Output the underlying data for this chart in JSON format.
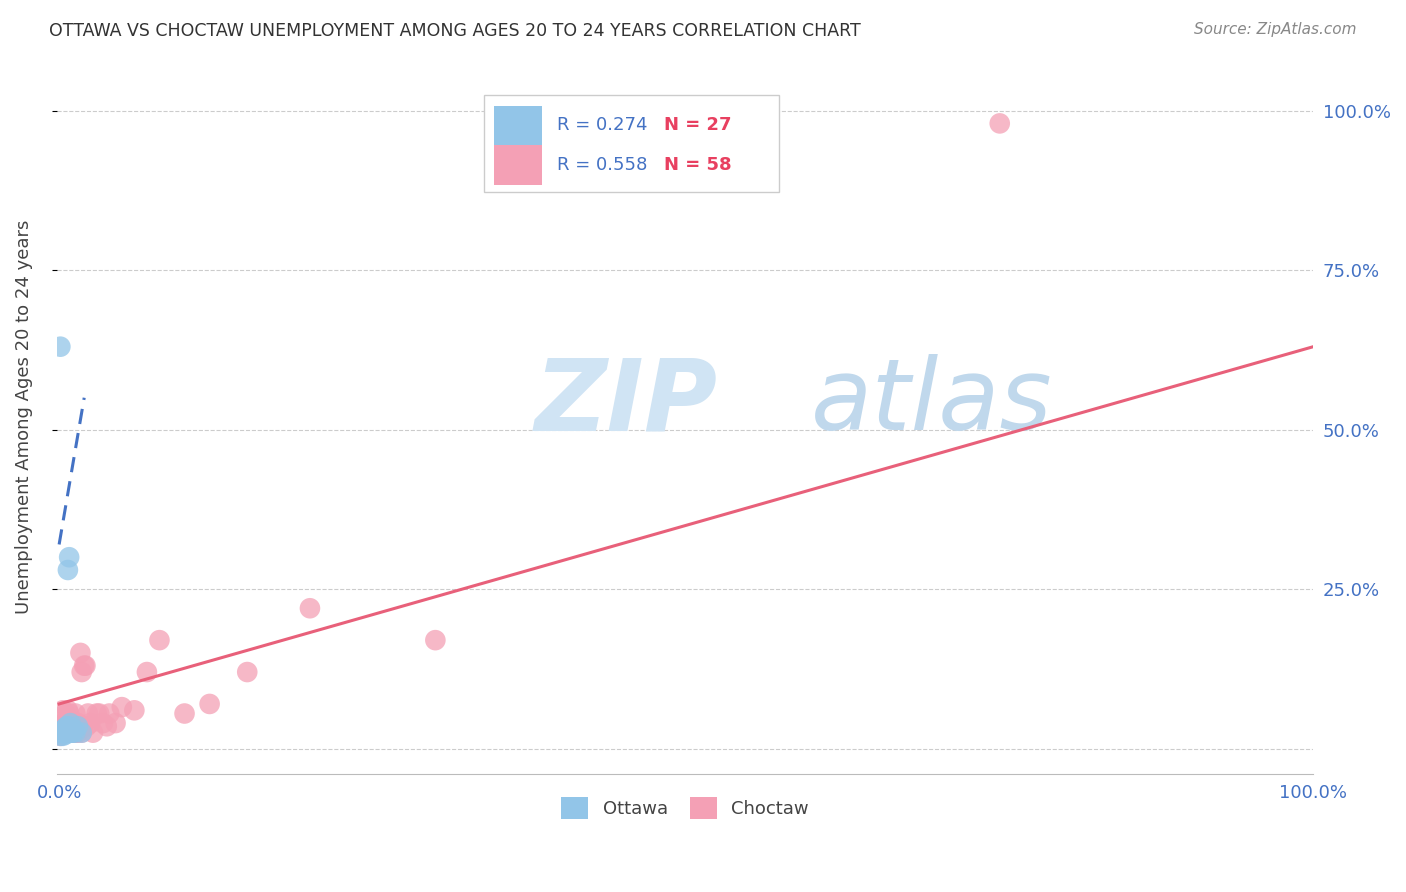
{
  "title": "OTTAWA VS CHOCTAW UNEMPLOYMENT AMONG AGES 20 TO 24 YEARS CORRELATION CHART",
  "source": "Source: ZipAtlas.com",
  "ylabel": "Unemployment Among Ages 20 to 24 years",
  "y_right_tick_labels": [
    "",
    "25.0%",
    "50.0%",
    "75.0%",
    "100.0%"
  ],
  "legend_ottawa_r": "R = 0.274",
  "legend_ottawa_n": "N = 27",
  "legend_choctaw_r": "R = 0.558",
  "legend_choctaw_n": "N = 58",
  "legend_bottom_ottawa": "Ottawa",
  "legend_bottom_choctaw": "Choctaw",
  "ottawa_color": "#92C5E8",
  "choctaw_color": "#F4A0B5",
  "ottawa_line_color": "#4472C4",
  "choctaw_line_color": "#E8607A",
  "legend_r_color": "#4472C4",
  "legend_n_color": "#E84060",
  "watermark_zip_color": "#D0E4F4",
  "watermark_atlas_color": "#C0D8EC",
  "background_color": "#FFFFFF",
  "grid_color": "#CCCCCC",
  "title_color": "#333333",
  "axis_tick_color": "#4472C4",
  "ottawa_x": [
    0.001,
    0.002,
    0.003,
    0.003,
    0.004,
    0.004,
    0.005,
    0.005,
    0.005,
    0.006,
    0.006,
    0.007,
    0.007,
    0.007,
    0.008,
    0.008,
    0.008,
    0.009,
    0.009,
    0.01,
    0.01,
    0.011,
    0.012,
    0.013,
    0.015,
    0.018,
    0.001
  ],
  "ottawa_y": [
    0.02,
    0.025,
    0.02,
    0.025,
    0.025,
    0.03,
    0.022,
    0.028,
    0.033,
    0.025,
    0.035,
    0.025,
    0.03,
    0.28,
    0.025,
    0.3,
    0.035,
    0.025,
    0.04,
    0.025,
    0.03,
    0.025,
    0.03,
    0.025,
    0.035,
    0.025,
    0.63
  ],
  "choctaw_x": [
    0.001,
    0.002,
    0.002,
    0.003,
    0.003,
    0.004,
    0.004,
    0.005,
    0.005,
    0.005,
    0.006,
    0.006,
    0.007,
    0.007,
    0.007,
    0.008,
    0.008,
    0.008,
    0.009,
    0.009,
    0.01,
    0.01,
    0.011,
    0.011,
    0.012,
    0.012,
    0.013,
    0.013,
    0.014,
    0.015,
    0.015,
    0.016,
    0.017,
    0.018,
    0.018,
    0.019,
    0.02,
    0.021,
    0.022,
    0.023,
    0.025,
    0.027,
    0.03,
    0.032,
    0.035,
    0.038,
    0.04,
    0.045,
    0.05,
    0.06,
    0.07,
    0.08,
    0.1,
    0.12,
    0.15,
    0.2,
    0.3,
    0.75
  ],
  "choctaw_y": [
    0.02,
    0.025,
    0.035,
    0.025,
    0.06,
    0.025,
    0.04,
    0.025,
    0.035,
    0.055,
    0.025,
    0.04,
    0.025,
    0.035,
    0.06,
    0.025,
    0.04,
    0.055,
    0.025,
    0.035,
    0.025,
    0.04,
    0.025,
    0.035,
    0.025,
    0.04,
    0.025,
    0.055,
    0.035,
    0.025,
    0.04,
    0.035,
    0.15,
    0.025,
    0.12,
    0.035,
    0.13,
    0.13,
    0.035,
    0.055,
    0.04,
    0.025,
    0.055,
    0.055,
    0.04,
    0.035,
    0.055,
    0.04,
    0.065,
    0.06,
    0.12,
    0.17,
    0.055,
    0.07,
    0.12,
    0.22,
    0.17,
    0.98
  ],
  "ottawa_trend_x": [
    0.0,
    0.02
  ],
  "ottawa_trend_y": [
    0.32,
    0.55
  ],
  "choctaw_trend_x": [
    0.0,
    1.0
  ],
  "choctaw_trend_y": [
    0.07,
    0.63
  ],
  "xlim": [
    -0.002,
    1.0
  ],
  "ylim": [
    -0.04,
    1.08
  ],
  "figsize": [
    14.06,
    8.92
  ],
  "dpi": 100
}
